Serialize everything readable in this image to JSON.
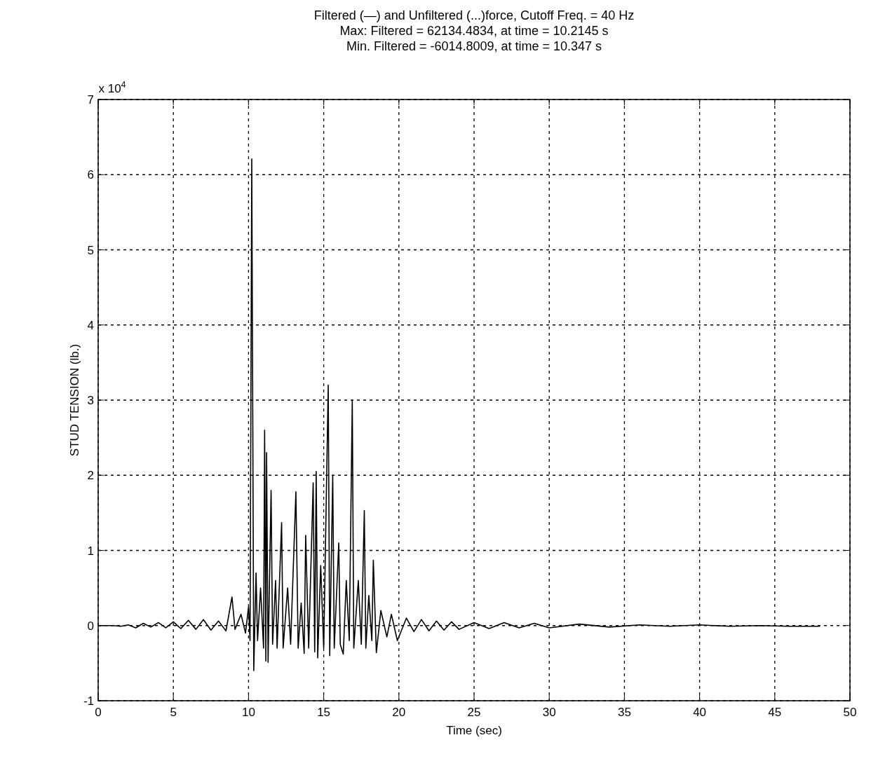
{
  "chart_data": {
    "type": "line",
    "title": "Filtered (—) and Unfiltered (...)force, Cutoff Freq. = 40 Hz\nMax: Filtered = 62134.4834, at time = 10.2145 s\nMin. Filtered = -6014.8009, at time = 10.347 s",
    "xlabel": "Time (sec)",
    "ylabel": "STUD TENSION (lb.)",
    "annotations": [
      "x 10$^{4}$"
    ],
    "xlim": [
      0,
      50
    ],
    "xticks": [
      0,
      5,
      10,
      15,
      20,
      25,
      30,
      35,
      40,
      45,
      50
    ],
    "ylim": [
      -1,
      7
    ],
    "yticks": [
      -1,
      0,
      1,
      2,
      3,
      4,
      5,
      6,
      7
    ],
    "grid": true,
    "line_style": "solid",
    "marker": "none",
    "series": [
      {
        "color": "#000000",
        "x": [
          0,
          1,
          1.5,
          2,
          2.5,
          3,
          3.5,
          4,
          4.5,
          5,
          5.5,
          6,
          6.5,
          7,
          7.5,
          8,
          8.5,
          8.9,
          9.1,
          9.5,
          9.8,
          10.0,
          10.1,
          10.2145,
          10.347,
          10.5,
          10.6,
          10.8,
          11.0,
          11.07,
          11.15,
          11.2,
          11.3,
          11.5,
          11.6,
          11.8,
          11.9,
          12.2,
          12.3,
          12.6,
          12.8,
          13.15,
          13.3,
          13.5,
          13.7,
          13.8,
          14.0,
          14.3,
          14.4,
          14.5,
          14.6,
          14.8,
          15.0,
          15.3,
          15.4,
          15.6,
          15.7,
          16.0,
          16.1,
          16.3,
          16.5,
          16.7,
          16.9,
          17.0,
          17.3,
          17.5,
          17.7,
          17.8,
          18.0,
          18.2,
          18.3,
          18.5,
          18.8,
          19.2,
          19.5,
          19.9,
          20.5,
          21,
          21.5,
          22,
          22.5,
          23,
          23.5,
          24,
          25,
          26,
          27,
          28,
          29,
          30,
          32,
          34,
          36,
          38,
          40,
          42,
          44,
          46,
          48
        ],
        "values": [
          0,
          0,
          -0.01,
          0.01,
          -0.03,
          0.03,
          -0.02,
          0.04,
          -0.03,
          0.05,
          -0.04,
          0.07,
          -0.05,
          0.08,
          -0.06,
          0.06,
          -0.07,
          0.38,
          -0.05,
          0.15,
          -0.1,
          0.25,
          -0.2,
          6.21,
          -0.6,
          0.7,
          -0.2,
          0.5,
          -0.3,
          2.6,
          -0.47,
          2.3,
          -0.49,
          1.8,
          -0.25,
          0.6,
          -0.3,
          1.37,
          -0.3,
          0.5,
          -0.25,
          1.78,
          -0.3,
          0.3,
          -0.37,
          1.2,
          -0.3,
          1.9,
          -0.35,
          2.05,
          -0.43,
          0.8,
          -0.3,
          3.2,
          -0.4,
          2.0,
          -0.3,
          1.1,
          -0.25,
          -0.38,
          0.6,
          -0.2,
          3.0,
          -0.3,
          0.6,
          -0.25,
          1.53,
          -0.3,
          0.4,
          -0.2,
          0.87,
          -0.36,
          0.2,
          -0.15,
          0.15,
          -0.2,
          0.1,
          -0.08,
          0.08,
          -0.07,
          0.06,
          -0.06,
          0.05,
          -0.05,
          0.04,
          -0.04,
          0.04,
          -0.03,
          0.03,
          -0.03,
          0.02,
          -0.02,
          0.01,
          -0.01,
          0.01,
          -0.01,
          0,
          -0.01,
          -0.01
        ]
      }
    ]
  }
}
